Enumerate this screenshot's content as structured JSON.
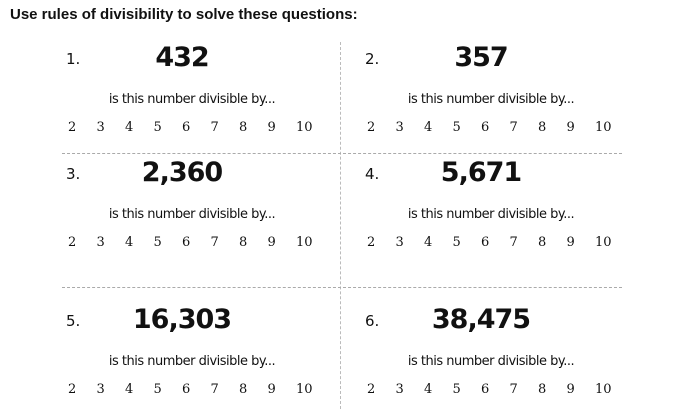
{
  "title": "Use rules of divisibility to solve these questions:",
  "prompt": "is this number divisible by...",
  "divisors": [
    "2",
    "3",
    "4",
    "5",
    "6",
    "7",
    "8",
    "9",
    "10"
  ],
  "questions": [
    {
      "label": "1.",
      "number": "432"
    },
    {
      "label": "2.",
      "number": "357"
    },
    {
      "label": "3.",
      "number": "2,360"
    },
    {
      "label": "4.",
      "number": "5,671"
    },
    {
      "label": "5.",
      "number": "16,303"
    },
    {
      "label": "6.",
      "number": "38,475"
    }
  ]
}
